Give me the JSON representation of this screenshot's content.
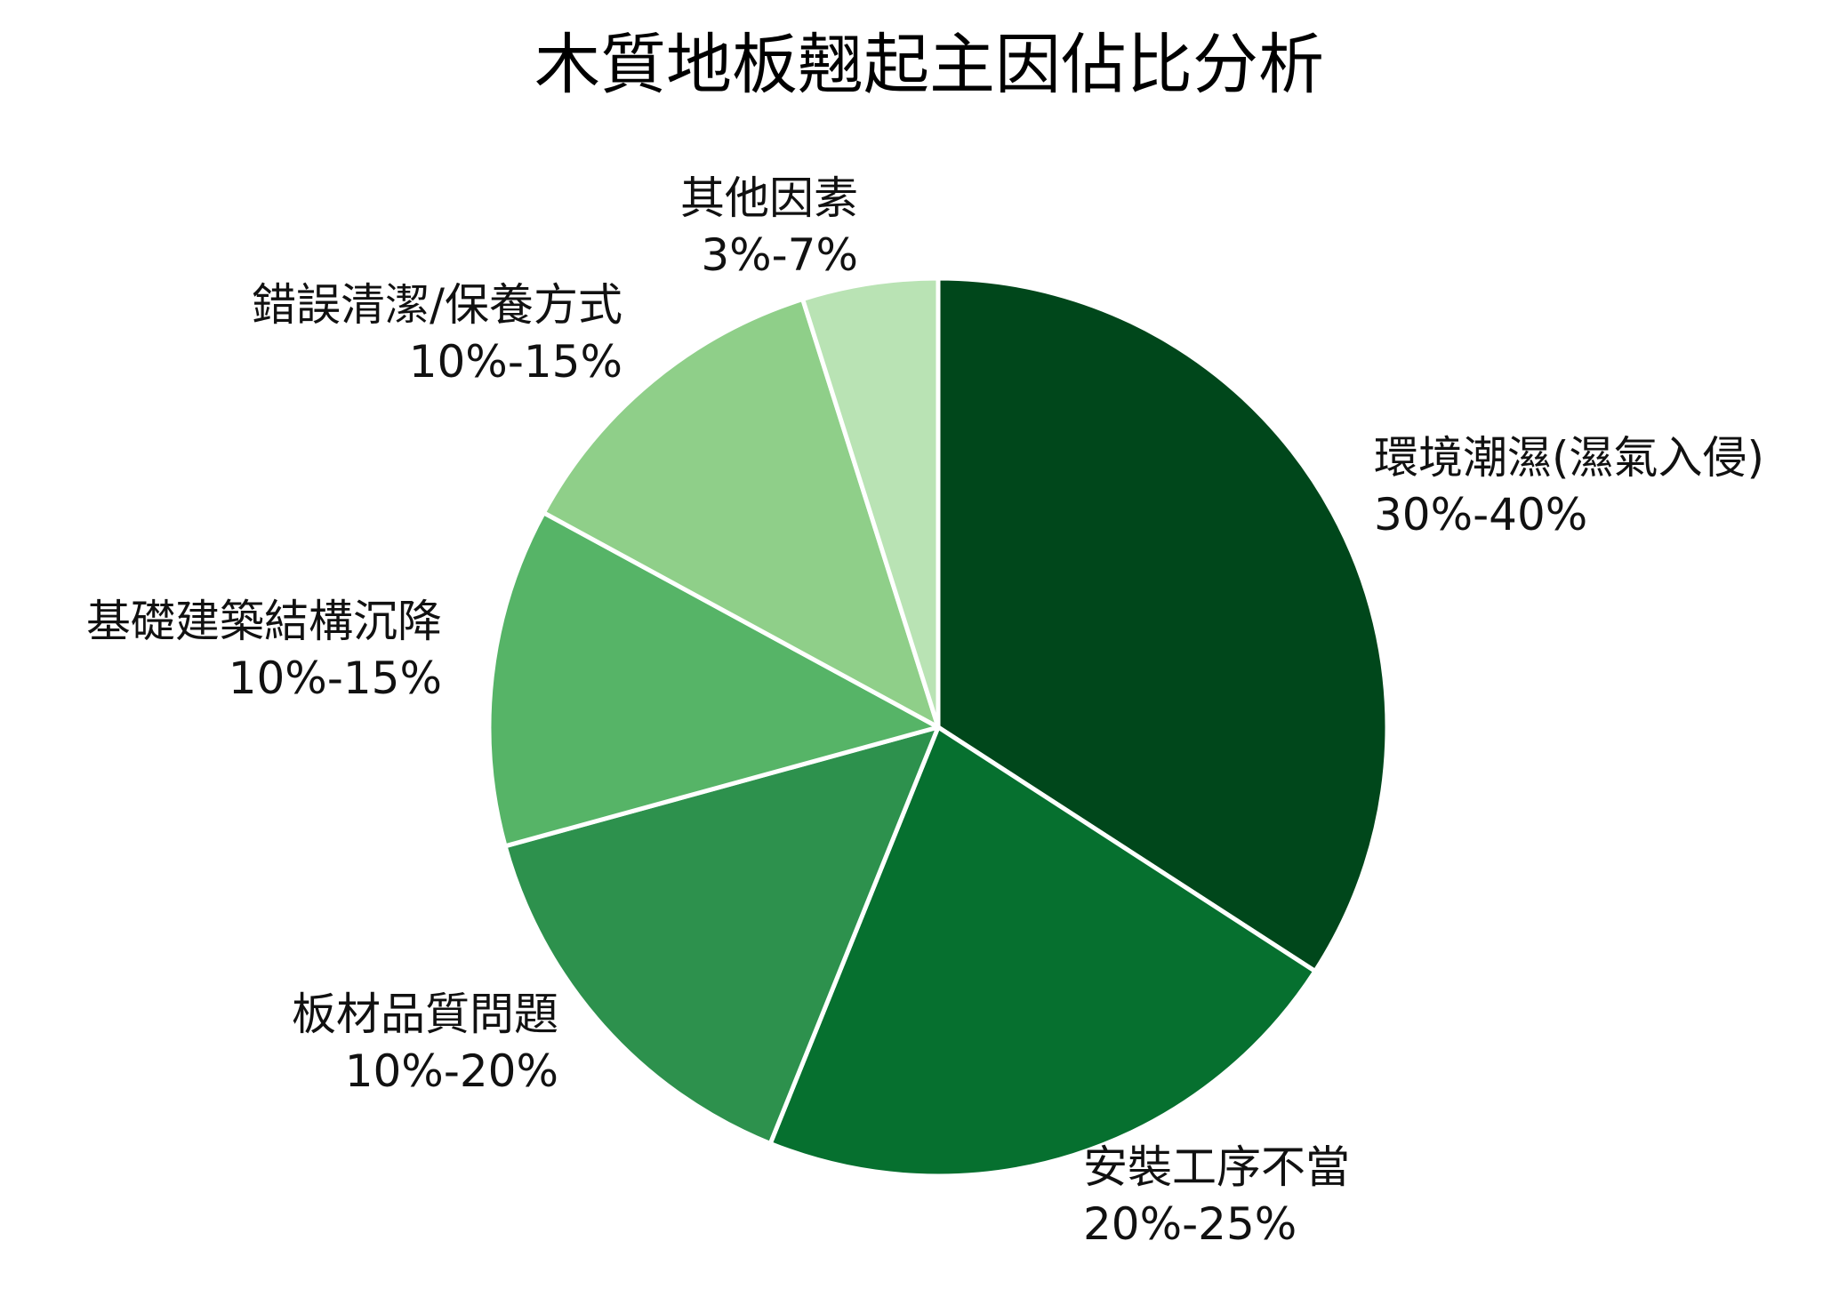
{
  "chart_data": {
    "type": "pie",
    "title": "木質地板翹起主因佔比分析",
    "start_angle_deg": 90,
    "direction": "clockwise",
    "slices": [
      {
        "label": "環境潮濕(濕氣入侵)",
        "range_text": "30%-40%",
        "value": 35,
        "color": "#00471b"
      },
      {
        "label": "安裝工序不當",
        "range_text": "20%-25%",
        "value": 22.5,
        "color": "#06702f"
      },
      {
        "label": "板材品質問題",
        "range_text": "10%-20%",
        "value": 15,
        "color": "#2d914d"
      },
      {
        "label": "基礎建築結構沉降",
        "range_text": "10%-15%",
        "value": 12.5,
        "color": "#56b467"
      },
      {
        "label": "錯誤清潔/保養方式",
        "range_text": "10%-15%",
        "value": 12.5,
        "color": "#8fcf89"
      },
      {
        "label": "其他因素",
        "range_text": "3%-7%",
        "value": 5,
        "color": "#b9e3b4"
      }
    ]
  }
}
